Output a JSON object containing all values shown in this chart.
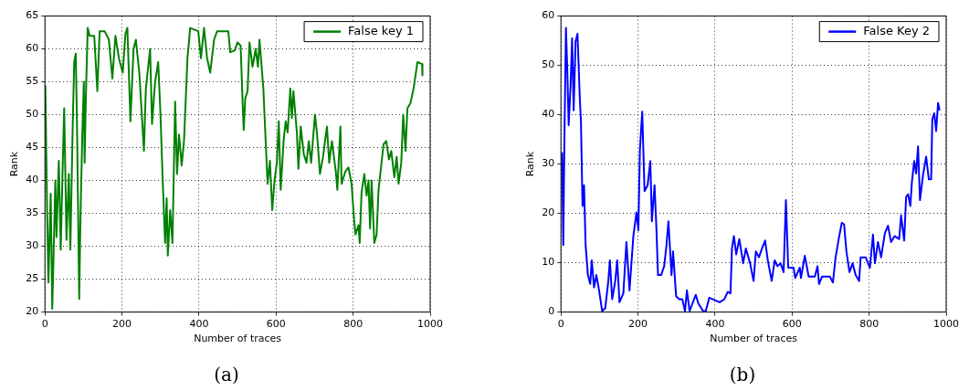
{
  "chart_data": [
    {
      "type": "line",
      "xlabel": "Number of traces",
      "ylabel": "Rank",
      "annotations": [
        "(a)"
      ],
      "xlim": [
        0,
        1000
      ],
      "xticks": [
        0,
        200,
        400,
        600,
        800,
        1000
      ],
      "ylim": [
        20,
        65
      ],
      "yticks": [
        20,
        25,
        30,
        35,
        40,
        45,
        50,
        55,
        60,
        65
      ],
      "grid": true,
      "legend": "top right",
      "marker": "none",
      "line_style": "solid",
      "series": [
        {
          "name": "False key 1",
          "color": "#008000",
          "x": [
            1,
            5,
            9,
            15,
            19,
            23,
            27,
            30,
            36,
            41,
            46,
            50,
            56,
            62,
            66,
            72,
            76,
            80,
            83,
            89,
            92,
            97,
            101,
            103,
            106,
            111,
            116,
            128,
            136,
            142,
            155,
            166,
            175,
            183,
            192,
            202,
            209,
            214,
            222,
            230,
            236,
            245,
            257,
            262,
            273,
            278,
            286,
            294,
            300,
            306,
            312,
            316,
            319,
            325,
            331,
            338,
            343,
            348,
            355,
            361,
            370,
            377,
            398,
            405,
            413,
            421,
            429,
            439,
            447,
            476,
            481,
            493,
            500,
            508,
            514,
            516,
            520,
            526,
            531,
            539,
            547,
            553,
            557,
            567,
            571,
            578,
            584,
            590,
            596,
            602,
            607,
            612,
            620,
            625,
            630,
            637,
            641,
            645,
            654,
            658,
            664,
            672,
            679,
            685,
            691,
            701,
            706,
            714,
            722,
            732,
            738,
            745,
            755,
            759,
            767,
            770,
            780,
            788,
            796,
            802,
            806,
            814,
            817,
            822,
            829,
            835,
            840,
            844,
            848,
            855,
            861,
            866,
            879,
            886,
            893,
            899,
            907,
            913,
            918,
            925,
            930,
            936,
            941,
            949,
            957,
            967,
            979,
            980
          ],
          "values": [
            54.5,
            38,
            24.5,
            38,
            20.5,
            30,
            40,
            31.4,
            43,
            29.5,
            42,
            51,
            31,
            41,
            29.5,
            48,
            58,
            59.3,
            49.5,
            22,
            33.6,
            47,
            55,
            42.7,
            52,
            63.2,
            62,
            62,
            53.6,
            62.7,
            62.7,
            61.4,
            55.5,
            62,
            58.6,
            56.4,
            62.3,
            63.2,
            49,
            60,
            61.4,
            56.4,
            44.5,
            54,
            60,
            48.6,
            55,
            58,
            50,
            39.5,
            30.5,
            37.3,
            28.6,
            35.5,
            30.5,
            52,
            41,
            47,
            42.3,
            46,
            58.6,
            63.2,
            62.7,
            58.6,
            63.2,
            58.6,
            56.4,
            61.4,
            62.7,
            62.7,
            59.5,
            59.8,
            61,
            60.5,
            50.5,
            47.7,
            52.5,
            53.6,
            61,
            57.3,
            60,
            57.3,
            61.4,
            54,
            48.6,
            39.5,
            43,
            35.5,
            40,
            42.7,
            49,
            38.6,
            46.4,
            49,
            47.3,
            54,
            49.5,
            53.6,
            47.3,
            41.8,
            48.2,
            44,
            42.7,
            46,
            42.7,
            50,
            47.3,
            41,
            43.6,
            48.2,
            42.7,
            46,
            41.4,
            38.6,
            48.2,
            39.5,
            41.4,
            42,
            39.5,
            34.5,
            31.8,
            33.2,
            30.5,
            38.2,
            41,
            37.7,
            40,
            32.7,
            40,
            30.5,
            31.8,
            38.6,
            45.5,
            46,
            43.2,
            44.5,
            40.5,
            43.6,
            39.5,
            42.7,
            50,
            44.5,
            51,
            51.8,
            54,
            58,
            57.7,
            56
          ]
        }
      ]
    },
    {
      "type": "line",
      "xlabel": "Number of traces",
      "ylabel": "Rank",
      "annotations": [
        "(b)"
      ],
      "xlim": [
        0,
        1000
      ],
      "xticks": [
        0,
        200,
        400,
        600,
        800,
        1000
      ],
      "ylim": [
        0,
        60
      ],
      "yticks": [
        0,
        10,
        20,
        30,
        40,
        50,
        60
      ],
      "grid": true,
      "legend": "top right",
      "marker": "none",
      "line_style": "solid",
      "series": [
        {
          "name": "False Key 2",
          "color": "#0000ff",
          "x": [
            3,
            6,
            9,
            13,
            17,
            20,
            25,
            29,
            33,
            38,
            43,
            49,
            52,
            56,
            60,
            64,
            70,
            76,
            80,
            86,
            92,
            99,
            107,
            115,
            123,
            127,
            133,
            141,
            146,
            152,
            162,
            170,
            178,
            188,
            196,
            201,
            205,
            211,
            217,
            225,
            232,
            236,
            243,
            248,
            252,
            260,
            268,
            274,
            279,
            287,
            291,
            299,
            307,
            315,
            322,
            327,
            334,
            350,
            357,
            369,
            376,
            385,
            412,
            424,
            433,
            440,
            444,
            449,
            455,
            463,
            473,
            480,
            491,
            500,
            506,
            514,
            522,
            530,
            537,
            547,
            555,
            562,
            570,
            578,
            584,
            590,
            604,
            608,
            620,
            623,
            633,
            643,
            659,
            666,
            670,
            678,
            698,
            706,
            713,
            721,
            729,
            735,
            741,
            749,
            757,
            765,
            774,
            778,
            791,
            802,
            810,
            815,
            823,
            831,
            841,
            849,
            857,
            866,
            878,
            883,
            891,
            896,
            901,
            907,
            911,
            917,
            922,
            927,
            932,
            940,
            948,
            955,
            961,
            964,
            969,
            974,
            979,
            983
          ],
          "values": [
            32.4,
            13.6,
            34.8,
            57.6,
            47.6,
            37.9,
            45.8,
            55.5,
            40.9,
            54.9,
            56.4,
            43.3,
            38.5,
            21.5,
            25.7,
            13.6,
            7.5,
            5.7,
            10.5,
            5,
            7.5,
            4.4,
            0.2,
            0.8,
            6.3,
            10.5,
            2.6,
            6.3,
            10.5,
            2,
            3.8,
            14.2,
            4.4,
            15.4,
            20.2,
            16.6,
            33,
            40.6,
            24.5,
            25.7,
            30.6,
            18.4,
            25.7,
            16.6,
            7.5,
            7.5,
            9.3,
            13.6,
            18.4,
            7.5,
            12.3,
            3.2,
            2.6,
            2.6,
            0.2,
            4.4,
            0.2,
            3.5,
            1.7,
            0.2,
            0.2,
            2.9,
            2,
            2.6,
            4.1,
            3.8,
            12.9,
            15.4,
            11.7,
            14.8,
            9.9,
            12.9,
            9.9,
            6.3,
            12.3,
            11.1,
            12.9,
            14.5,
            10.5,
            6.3,
            10.5,
            9.3,
            9.9,
            8.1,
            22.7,
            9,
            9,
            6.9,
            9,
            6.9,
            11.4,
            7.2,
            7.2,
            9.3,
            5.7,
            7.2,
            7.2,
            6,
            11.1,
            14.8,
            18.1,
            17.8,
            12.3,
            8.1,
            9.9,
            7.5,
            6.3,
            11.1,
            11.1,
            9,
            15.7,
            9.9,
            14.2,
            11.1,
            16,
            17.5,
            14.2,
            15.4,
            14.8,
            19.6,
            14.5,
            23.3,
            23.9,
            21.5,
            26.3,
            30.6,
            28.1,
            33.6,
            22.7,
            27.8,
            31.5,
            26.9,
            26.9,
            39.1,
            40.3,
            36.7,
            42.4,
            40.9
          ]
        }
      ]
    }
  ]
}
